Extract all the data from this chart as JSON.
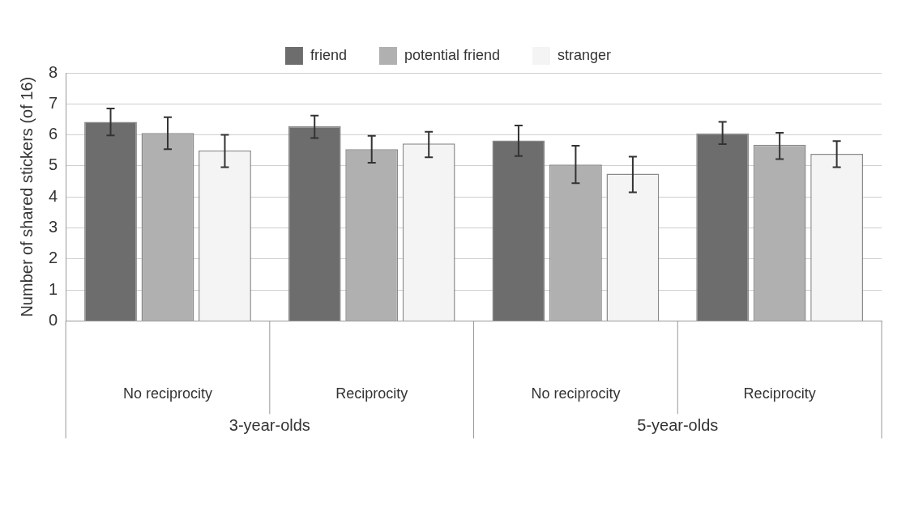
{
  "chart_data": {
    "type": "bar",
    "ylabel": "Number of shared stickers (of 16)",
    "categories": [
      "No reciprocity",
      "Reciprocity",
      "No reciprocity",
      "Reciprocity"
    ],
    "series": [
      {
        "name": "friend",
        "color": "#6d6d6d",
        "values": [
          6.42,
          6.28,
          5.82,
          6.05
        ],
        "errors": [
          [
            5.98,
            6.85
          ],
          [
            5.9,
            6.62
          ],
          [
            5.32,
            6.3
          ],
          [
            5.7,
            6.42
          ]
        ]
      },
      {
        "name": "potential friend",
        "color": "#b0b0b0",
        "values": [
          6.06,
          5.54,
          5.04,
          5.68
        ],
        "errors": [
          [
            5.54,
            6.57
          ],
          [
            5.1,
            5.97
          ],
          [
            4.44,
            5.65
          ],
          [
            5.22,
            6.07
          ]
        ]
      },
      {
        "name": "stranger",
        "color": "#f4f4f4",
        "values": [
          5.5,
          5.72,
          4.75,
          5.39
        ],
        "errors": [
          [
            4.96,
            6.0
          ],
          [
            5.28,
            6.1
          ],
          [
            4.15,
            5.3
          ],
          [
            4.96,
            5.8
          ]
        ]
      }
    ],
    "annotations": [
      "3-year-olds",
      "5-year-olds"
    ],
    "ylim": [
      0,
      8
    ],
    "yticks": [
      0,
      1,
      2,
      3,
      4,
      5,
      6,
      7,
      8
    ],
    "grid": "y",
    "legend": "top"
  }
}
